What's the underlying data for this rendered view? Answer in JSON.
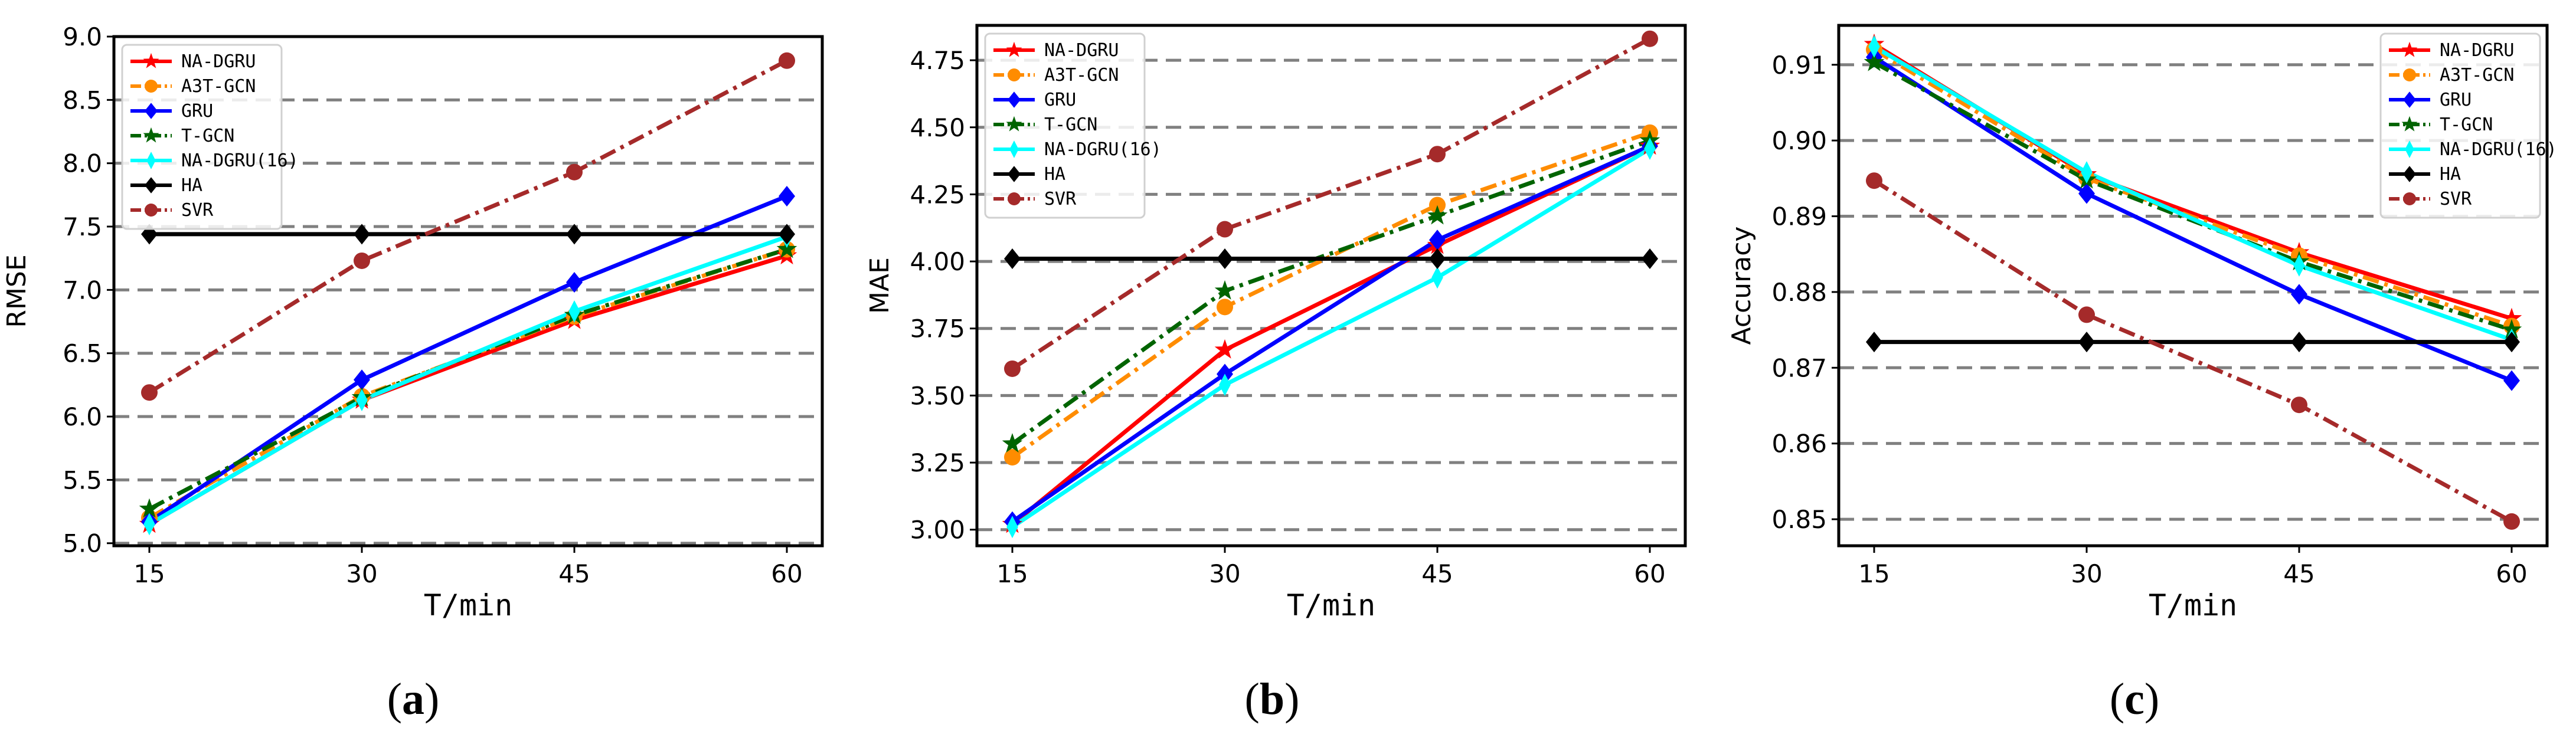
{
  "series_styles": [
    {
      "name": "NA-DGRU",
      "color": "#ff0000",
      "marker": "star",
      "dash": ""
    },
    {
      "name": "A3T-GCN",
      "color": "#ff8c00",
      "marker": "circle",
      "dash": "28,10,6,10"
    },
    {
      "name": "GRU",
      "color": "#0000ff",
      "marker": "diamond",
      "dash": ""
    },
    {
      "name": "T-GCN",
      "color": "#006400",
      "marker": "star",
      "dash": "28,10,6,10"
    },
    {
      "name": "NA-DGRU(16)",
      "color": "#00ffff",
      "marker": "diamond-thin",
      "dash": ""
    },
    {
      "name": "HA",
      "color": "#000000",
      "marker": "diamond",
      "dash": ""
    },
    {
      "name": "SVR",
      "color": "#a52a2a",
      "marker": "circle",
      "dash": "28,10,6,10"
    }
  ],
  "chart_data": [
    {
      "type": "line",
      "caption": "a",
      "xlabel": "T/min",
      "ylabel": "RMSE",
      "x": [
        15,
        30,
        45,
        60
      ],
      "xlim": [
        12.5,
        62.5
      ],
      "ylim": [
        4.98,
        9.0
      ],
      "yticks": [
        "5.0",
        "5.5",
        "6.0",
        "6.5",
        "7.0",
        "7.5",
        "8.0",
        "8.5",
        "9.0"
      ],
      "grid_lines": [
        5.0,
        5.5,
        6.0,
        6.5,
        7.0,
        7.5,
        8.0,
        8.5
      ],
      "legend": "top-left",
      "series": [
        {
          "name": "NA-DGRU",
          "values": [
            5.15,
            6.13,
            6.76,
            7.27
          ]
        },
        {
          "name": "A3T-GCN",
          "values": [
            5.2,
            6.16,
            6.79,
            7.32
          ]
        },
        {
          "name": "GRU",
          "values": [
            5.17,
            6.29,
            7.06,
            7.74
          ]
        },
        {
          "name": "T-GCN",
          "values": [
            5.27,
            6.15,
            6.8,
            7.32
          ]
        },
        {
          "name": "NA-DGRU(16)",
          "values": [
            5.15,
            6.13,
            6.83,
            7.42
          ]
        },
        {
          "name": "HA",
          "values": [
            7.44,
            7.44,
            7.44,
            7.44
          ]
        },
        {
          "name": "SVR",
          "values": [
            6.19,
            7.23,
            7.93,
            8.81
          ]
        }
      ]
    },
    {
      "type": "line",
      "caption": "b",
      "xlabel": "T/min",
      "ylabel": "MAE",
      "x": [
        15,
        30,
        45,
        60
      ],
      "xlim": [
        12.5,
        62.5
      ],
      "ylim": [
        2.94,
        4.88
      ],
      "yticks": [
        "3.00",
        "3.25",
        "3.50",
        "3.75",
        "4.00",
        "4.25",
        "4.50",
        "4.75"
      ],
      "grid_lines": [
        3.0,
        3.25,
        3.5,
        3.75,
        4.0,
        4.25,
        4.5,
        4.75
      ],
      "legend": "top-left",
      "series": [
        {
          "name": "NA-DGRU",
          "values": [
            3.02,
            3.67,
            4.06,
            4.43
          ]
        },
        {
          "name": "A3T-GCN",
          "values": [
            3.27,
            3.83,
            4.21,
            4.48
          ]
        },
        {
          "name": "GRU",
          "values": [
            3.03,
            3.58,
            4.08,
            4.43
          ]
        },
        {
          "name": "T-GCN",
          "values": [
            3.32,
            3.89,
            4.17,
            4.45
          ]
        },
        {
          "name": "NA-DGRU(16)",
          "values": [
            3.01,
            3.54,
            3.94,
            4.42
          ]
        },
        {
          "name": "HA",
          "values": [
            4.01,
            4.01,
            4.01,
            4.01
          ]
        },
        {
          "name": "SVR",
          "values": [
            3.6,
            4.12,
            4.4,
            4.83
          ]
        }
      ]
    },
    {
      "type": "line",
      "caption": "c",
      "xlabel": "T/min",
      "ylabel": "Accuracy",
      "x": [
        15,
        30,
        45,
        60
      ],
      "xlim": [
        12.5,
        62.5
      ],
      "ylim": [
        0.8465,
        0.9152
      ],
      "yticks": [
        "0.85",
        "0.86",
        "0.87",
        "0.88",
        "0.89",
        "0.90",
        "0.91"
      ],
      "grid_lines": [
        0.85,
        0.86,
        0.87,
        0.88,
        0.89,
        0.9,
        0.91
      ],
      "legend": "top-right",
      "series": [
        {
          "name": "NA-DGRU",
          "values": [
            0.9127,
            0.8955,
            0.8852,
            0.8765
          ]
        },
        {
          "name": "A3T-GCN",
          "values": [
            0.912,
            0.895,
            0.8848,
            0.8755
          ]
        },
        {
          "name": "GRU",
          "values": [
            0.911,
            0.893,
            0.8797,
            0.8683
          ]
        },
        {
          "name": "T-GCN",
          "values": [
            0.9103,
            0.8948,
            0.884,
            0.875
          ]
        },
        {
          "name": "NA-DGRU(16)",
          "values": [
            0.9124,
            0.8958,
            0.8835,
            0.8737
          ]
        },
        {
          "name": "HA",
          "values": [
            0.8734,
            0.8734,
            0.8734,
            0.8734
          ]
        },
        {
          "name": "SVR",
          "values": [
            0.8947,
            0.877,
            0.8651,
            0.8497
          ]
        }
      ]
    }
  ]
}
